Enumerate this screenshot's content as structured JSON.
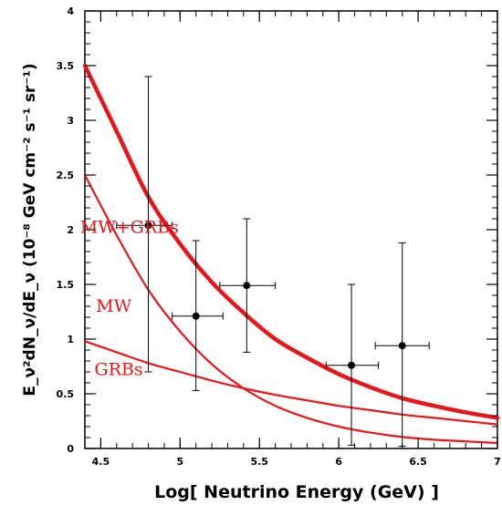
{
  "chart_data": {
    "type": "line",
    "title": "",
    "xlabel": "Log[ Neutrino Energy (GeV) ]",
    "ylabel": "E_ν²dN_ν/dE_ν (10⁻⁸ GeV cm⁻² s⁻¹ sr⁻¹)",
    "xlim": [
      4.4,
      7.0
    ],
    "ylim": [
      0,
      4
    ],
    "x_ticks": [
      "4.5",
      "5",
      "5.5",
      "6",
      "6.5",
      "7"
    ],
    "y_ticks": [
      "0",
      "0.5",
      "1",
      "1.5",
      "2",
      "2.5",
      "3",
      "3.5",
      "4"
    ],
    "grid": false,
    "line_color": "#e8161b",
    "series": [
      {
        "name": "MW+GRBs",
        "thick": true,
        "x": [
          4.4,
          4.6,
          4.8,
          5.0,
          5.2,
          5.4,
          5.6,
          5.8,
          6.0,
          6.2,
          6.4,
          6.6,
          6.8,
          7.0
        ],
        "y": [
          3.5,
          2.9,
          2.3,
          1.87,
          1.52,
          1.24,
          1.0,
          0.83,
          0.68,
          0.56,
          0.46,
          0.39,
          0.33,
          0.28
        ]
      },
      {
        "name": "MW",
        "thick": false,
        "x": [
          4.4,
          4.6,
          4.8,
          5.0,
          5.2,
          5.4,
          5.6,
          5.8,
          6.0,
          6.2,
          6.4,
          6.6,
          6.8,
          7.0
        ],
        "y": [
          2.5,
          1.95,
          1.45,
          1.07,
          0.77,
          0.55,
          0.39,
          0.28,
          0.2,
          0.145,
          0.105,
          0.08,
          0.065,
          0.05
        ]
      },
      {
        "name": "GRBs",
        "thick": false,
        "x": [
          4.4,
          4.6,
          4.8,
          5.0,
          5.2,
          5.4,
          5.6,
          5.8,
          6.0,
          6.2,
          6.4,
          6.6,
          6.8,
          7.0
        ],
        "y": [
          0.98,
          0.88,
          0.78,
          0.7,
          0.62,
          0.55,
          0.49,
          0.44,
          0.39,
          0.35,
          0.31,
          0.28,
          0.25,
          0.22
        ]
      }
    ],
    "labels": [
      {
        "text": "MW+GRBs",
        "x": 4.37,
        "y": 1.97
      },
      {
        "text": "MW",
        "x": 4.47,
        "y": 1.25
      },
      {
        "text": "GRBs",
        "x": 4.46,
        "y": 0.67
      }
    ],
    "points": [
      {
        "x": 4.8,
        "y": 2.04,
        "xerr": [
          4.6,
          4.95
        ],
        "yerr": [
          0.7,
          3.4
        ]
      },
      {
        "x": 5.1,
        "y": 1.21,
        "xerr": [
          4.95,
          5.27
        ],
        "yerr": [
          0.53,
          1.9
        ]
      },
      {
        "x": 5.42,
        "y": 1.49,
        "xerr": [
          5.25,
          5.6
        ],
        "yerr": [
          0.88,
          2.1
        ]
      },
      {
        "x": 6.08,
        "y": 0.76,
        "xerr": [
          5.92,
          6.25
        ],
        "yerr": [
          0.03,
          1.5
        ]
      },
      {
        "x": 6.4,
        "y": 0.94,
        "xerr": [
          6.23,
          6.57
        ],
        "yerr": [
          0.02,
          1.88
        ]
      }
    ]
  }
}
